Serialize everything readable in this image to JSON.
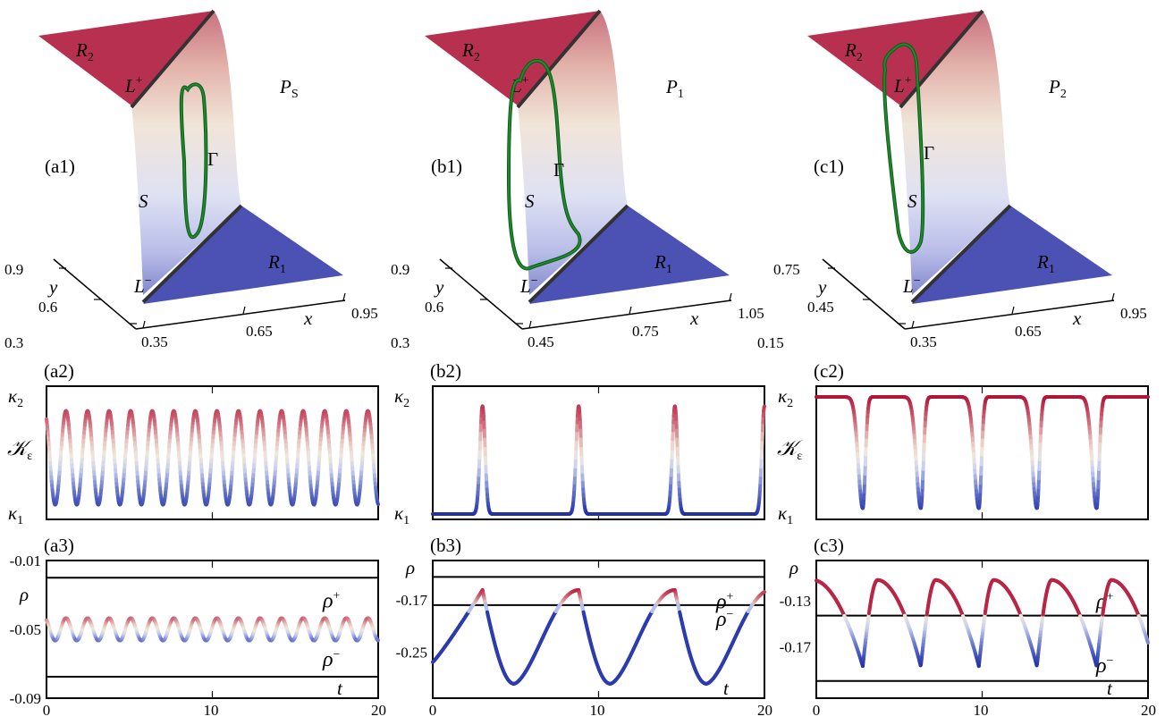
{
  "colors": {
    "red": "#b3163a",
    "blue": "#2332a8",
    "green": "#1f8a2c",
    "region_r2": "#b83050",
    "region_r1": "#4b52b4",
    "axis": "#000000"
  },
  "chart_data": [
    {
      "id": "a1",
      "type": "surface3d",
      "panel_label": "(a1)",
      "param": "P",
      "param_sub": "S",
      "regions": [
        "R",
        "R"
      ],
      "region_subs": [
        "2",
        "1"
      ],
      "curves": [
        "L",
        "L"
      ],
      "curve_sups": [
        "+",
        "−"
      ],
      "surface": "S",
      "orbit": "Γ",
      "xlabel": "x",
      "ylabel": "y",
      "x_ticks": [
        "0.35",
        "0.65",
        "0.95"
      ],
      "y_ticks": [
        "0.3",
        "0.6",
        "0.9"
      ]
    },
    {
      "id": "b1",
      "type": "surface3d",
      "panel_label": "(b1)",
      "param": "P",
      "param_sub": "1",
      "regions": [
        "R",
        "R"
      ],
      "region_subs": [
        "2",
        "1"
      ],
      "curves": [
        "L",
        "L"
      ],
      "curve_sups": [
        "+",
        "−"
      ],
      "surface": "S",
      "orbit": "Γ",
      "xlabel": "x",
      "ylabel": "y",
      "x_ticks": [
        "0.45",
        "0.75",
        "1.05"
      ],
      "y_ticks": [
        "0.3",
        "0.6",
        "0.9"
      ]
    },
    {
      "id": "c1",
      "type": "surface3d",
      "panel_label": "(c1)",
      "param": "P",
      "param_sub": "2",
      "regions": [
        "R",
        "R"
      ],
      "region_subs": [
        "2",
        "1"
      ],
      "curves": [
        "L",
        "L"
      ],
      "curve_sups": [
        "+",
        "−"
      ],
      "surface": "S",
      "orbit": "Γ",
      "xlabel": "x",
      "ylabel": "y",
      "x_ticks": [
        "0.35",
        "0.65",
        "0.95"
      ],
      "y_ticks": [
        "0.15",
        "0.45",
        "0.75"
      ]
    },
    {
      "id": "a2",
      "type": "line",
      "panel_label": "(a2)",
      "ylabel": "𝒦",
      "ylabel_sub": "ε",
      "ytick_labels": [
        "κ",
        "κ"
      ],
      "ytick_subs": [
        "2",
        "1"
      ],
      "xlim": [
        0,
        20
      ],
      "ylim": [
        0,
        1
      ],
      "period": 1.3,
      "n_peaks": 15,
      "low": 0.08,
      "high": 0.88
    },
    {
      "id": "b2",
      "type": "line",
      "panel_label": "(b2)",
      "ylabel": "",
      "ylabel_sub": "",
      "ytick_labels": [
        "κ",
        "κ"
      ],
      "ytick_subs": [
        "2",
        "1"
      ],
      "xlim": [
        0,
        20
      ],
      "ylim": [
        0,
        1
      ],
      "spike_times": [
        3.0,
        8.8,
        14.6,
        20.0
      ],
      "low": 0.0,
      "high": 0.92
    },
    {
      "id": "c2",
      "type": "line",
      "panel_label": "(c2)",
      "ylabel": "𝒦",
      "ylabel_sub": "ε",
      "ytick_labels": [
        "κ",
        "κ"
      ],
      "ytick_subs": [
        "2",
        "1"
      ],
      "xlim": [
        0,
        20
      ],
      "ylim": [
        0,
        1
      ],
      "dip_times": [
        2.8,
        6.3,
        9.8,
        13.3,
        16.9
      ],
      "low": 0.05,
      "high": 1.0
    },
    {
      "id": "a3",
      "type": "line",
      "panel_label": "(a3)",
      "ylabel": "ρ",
      "xlabel": "t",
      "xlim": [
        0,
        20
      ],
      "x_ticks": [
        "0",
        "10",
        "20"
      ],
      "ylim": [
        -0.09,
        -0.01
      ],
      "y_tick_values": [
        -0.09,
        -0.05,
        -0.01
      ],
      "y_ticks": [
        "-0.09",
        "-0.05",
        "-0.01"
      ],
      "rho_plus": -0.02,
      "rho_minus": -0.0775,
      "rho_plus_label": "ρ",
      "rho_plus_sup": "+",
      "rho_minus_label": "ρ",
      "rho_minus_sup": "−",
      "period": 1.3,
      "center": -0.05,
      "amplitude": 0.0065
    },
    {
      "id": "b3",
      "type": "line",
      "panel_label": "(b3)",
      "ylabel": "ρ",
      "xlabel": "t",
      "xlim": [
        0,
        20
      ],
      "x_ticks": [
        "0",
        "10",
        "20"
      ],
      "ylim": [
        -0.32,
        -0.11
      ],
      "y_tick_values": [
        -0.25,
        -0.17
      ],
      "y_ticks": [
        "-0.25",
        "-0.17"
      ],
      "rho_plus": -0.135,
      "rho_minus": -0.178,
      "rho_plus_label": "ρ",
      "rho_plus_sup": "+",
      "rho_minus_label": "ρ",
      "rho_minus_sup": "−",
      "peak_times": [
        3.0,
        8.8,
        14.6
      ],
      "peak": -0.155,
      "trough": -0.298,
      "start": -0.265
    },
    {
      "id": "c3",
      "type": "line",
      "panel_label": "(c3)",
      "ylabel": "ρ",
      "xlabel": "t",
      "xlim": [
        0,
        20
      ],
      "x_ticks": [
        "0",
        "10",
        "20"
      ],
      "ylim": [
        -0.215,
        -0.095
      ],
      "y_tick_values": [
        -0.17,
        -0.13
      ],
      "y_ticks": [
        "-0.17",
        "-0.13"
      ],
      "rho_plus": -0.143,
      "rho_minus": -0.2,
      "rho_plus_label": "ρ",
      "rho_plus_sup": "+",
      "rho_minus_label": "ρ",
      "rho_minus_sup": "−",
      "dip_times": [
        2.8,
        6.3,
        9.8,
        13.3,
        16.9
      ],
      "peak": -0.112,
      "trough": -0.187
    }
  ]
}
